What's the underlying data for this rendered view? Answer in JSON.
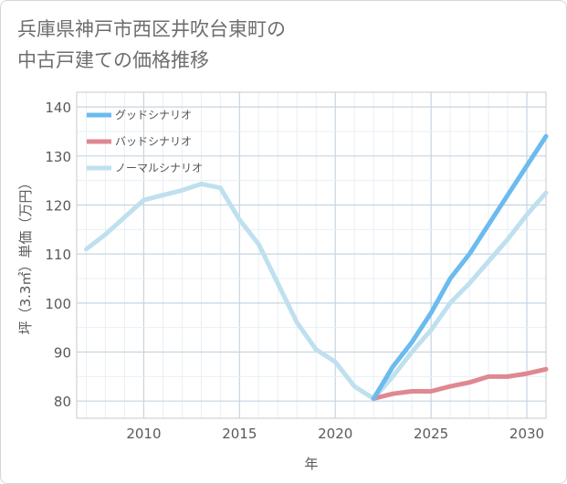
{
  "title_line1": "兵庫県神戸市西区井吹台東町の",
  "title_line2": "中古戸建ての価格推移",
  "chart_data": {
    "type": "line",
    "xlabel": "年",
    "ylabel": "坪（3.3㎡）単価（万円）",
    "xlim": [
      2006.5,
      2031
    ],
    "ylim": [
      76.5,
      143
    ],
    "xticks": [
      2010,
      2015,
      2020,
      2025,
      2030
    ],
    "yticks": [
      80,
      90,
      100,
      110,
      120,
      130,
      140
    ],
    "grid": true,
    "legend_position": "top-left",
    "series": [
      {
        "name": "グッドシナリオ",
        "color": "#6bbbef",
        "x": [
          2022,
          2023,
          2024,
          2025,
          2026,
          2027,
          2028,
          2029,
          2030,
          2031
        ],
        "y": [
          80.5,
          87,
          92,
          98,
          105,
          110,
          116,
          122,
          128,
          134
        ]
      },
      {
        "name": "バッドシナリオ",
        "color": "#df8891",
        "x": [
          2022,
          2023,
          2024,
          2025,
          2026,
          2027,
          2028,
          2029,
          2030,
          2031
        ],
        "y": [
          80.5,
          81.5,
          82,
          82,
          83,
          83.8,
          85,
          85,
          85.6,
          86.5
        ]
      },
      {
        "name": "ノーマルシナリオ",
        "color": "#bfe0ee",
        "x": [
          2007,
          2008,
          2009,
          2010,
          2011,
          2012,
          2013,
          2014,
          2015,
          2016,
          2017,
          2018,
          2019,
          2020,
          2021,
          2022,
          2023,
          2024,
          2025,
          2026,
          2027,
          2028,
          2029,
          2030,
          2031
        ],
        "y": [
          111,
          114,
          117.5,
          121,
          122,
          123,
          124.3,
          123.5,
          117,
          112,
          104,
          96,
          90.5,
          88,
          83,
          80.5,
          85,
          90,
          94.5,
          100,
          104,
          108.5,
          113,
          118,
          122.5
        ]
      }
    ]
  }
}
